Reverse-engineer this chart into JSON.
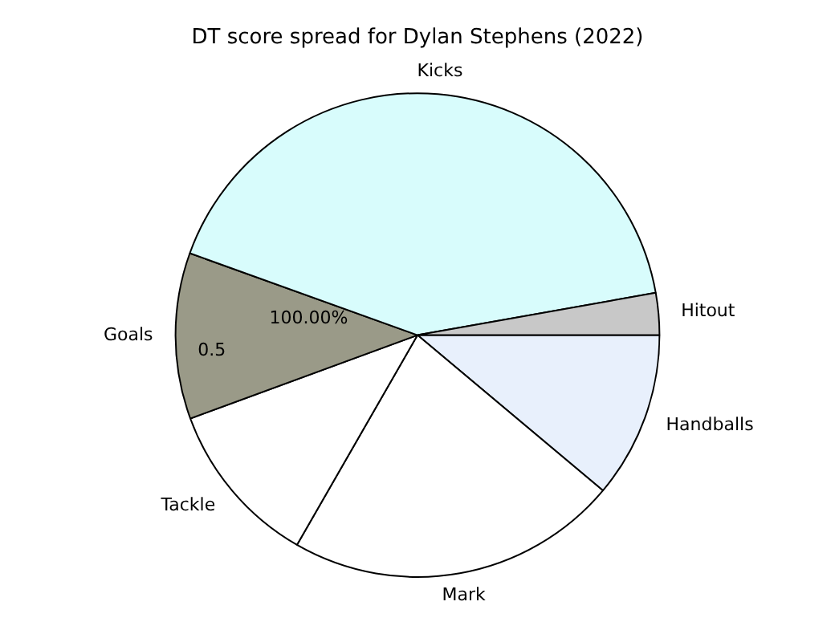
{
  "chart_data": {
    "type": "pie",
    "title": "DT score spread for Dylan Stephens (2022)",
    "categories": [
      "Handballs",
      "Mark",
      "Tackle",
      "Goals",
      "Kicks",
      "Hitout"
    ],
    "values": [
      11.1,
      22.2,
      11.1,
      11.1,
      41.7,
      2.8
    ],
    "colors": [
      "#e8f0fc",
      "#ffffff",
      "#ffffff",
      "#9a9a88",
      "#d8fcfc",
      "#c8c8c8"
    ],
    "annotations": [
      "100.00%",
      "0.5"
    ],
    "legend": false
  }
}
